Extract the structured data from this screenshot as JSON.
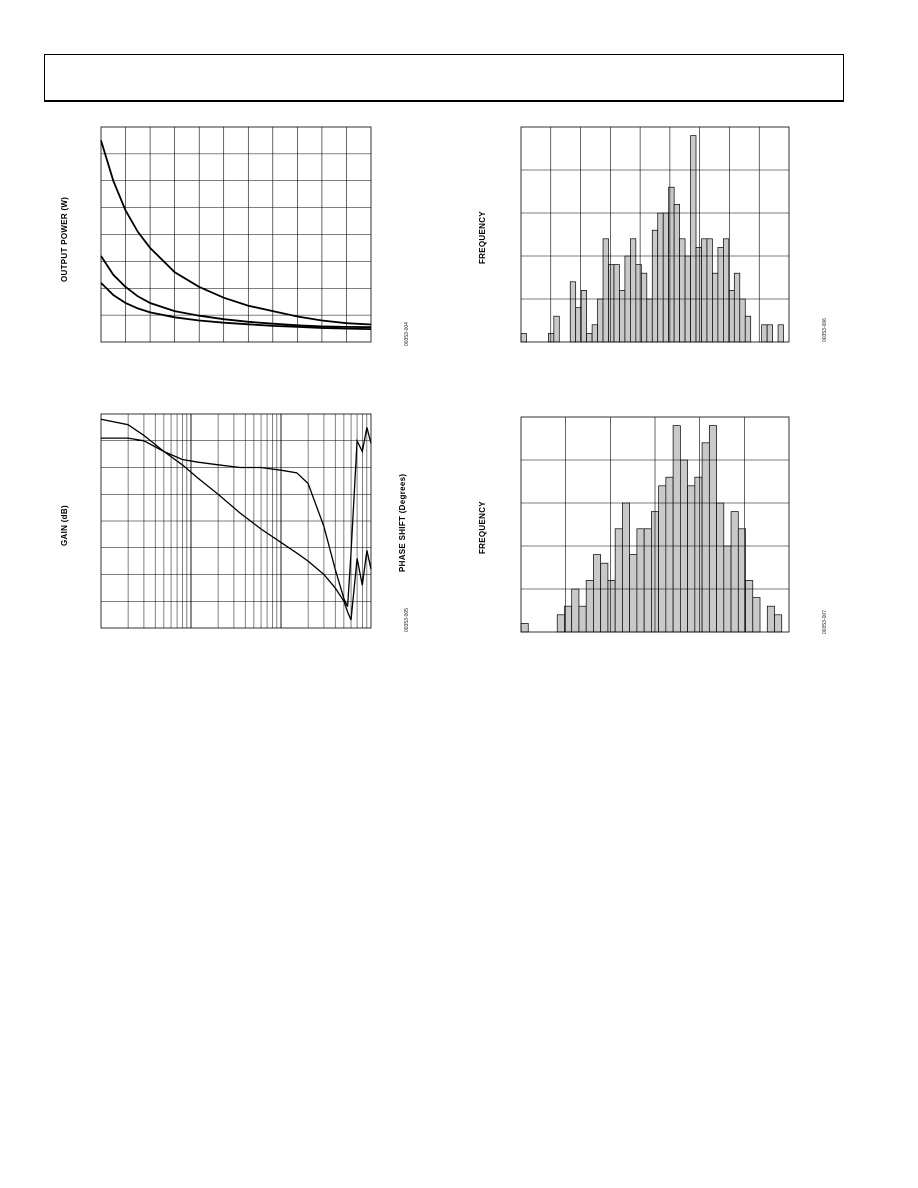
{
  "page": {
    "header": ""
  },
  "figures": [
    {
      "id": "fig-output-power",
      "ylabel": "OUTPUT POWER (W)",
      "fig_id": "00353-004"
    },
    {
      "id": "fig-gain-phase",
      "ylabel": "GAIN (dB)",
      "y2label": "PHASE SHIFT (Degrees)",
      "fig_id": "00353-005"
    },
    {
      "id": "fig-hist-1",
      "ylabel": "FREQUENCY",
      "fig_id": "00353-006"
    },
    {
      "id": "fig-hist-2",
      "ylabel": "FREQUENCY",
      "fig_id": "00353-007"
    }
  ],
  "chart_data": [
    {
      "type": "line",
      "title": "",
      "xlabel": "",
      "ylabel": "OUTPUT POWER (W)",
      "grid": true,
      "x": [
        0,
        0.5,
        1,
        1.5,
        2,
        3,
        4,
        5,
        6,
        7,
        8,
        9,
        10,
        11
      ],
      "xlim": [
        0,
        11
      ],
      "ylim": [
        0,
        8
      ],
      "series": [
        {
          "values": [
            7.5,
            6.0,
            4.9,
            4.1,
            3.5,
            2.6,
            2.05,
            1.65,
            1.35,
            1.15,
            0.95,
            0.8,
            0.7,
            0.65
          ]
        },
        {
          "values": [
            3.2,
            2.5,
            2.05,
            1.7,
            1.45,
            1.15,
            0.98,
            0.85,
            0.75,
            0.68,
            0.62,
            0.58,
            0.56,
            0.55
          ]
        },
        {
          "values": [
            2.2,
            1.75,
            1.45,
            1.25,
            1.1,
            0.92,
            0.8,
            0.72,
            0.66,
            0.6,
            0.56,
            0.52,
            0.5,
            0.48
          ]
        }
      ]
    },
    {
      "type": "line",
      "title": "",
      "xlabel": "",
      "ylabel": "GAIN (dB)",
      "y2label": "PHASE SHIFT (Degrees)",
      "grid": true,
      "xscale": "log",
      "xlim": [
        1,
        1000
      ],
      "ylim": [
        0,
        8
      ],
      "series": [
        {
          "x": [
            1,
            2,
            3,
            5,
            8,
            12,
            20,
            35,
            60,
            100,
            150,
            200,
            300,
            400,
            500,
            550,
            600,
            700,
            800,
            900,
            1000
          ],
          "values": [
            7.8,
            7.6,
            7.2,
            6.6,
            6.1,
            5.6,
            5.0,
            4.3,
            3.7,
            3.2,
            2.8,
            2.5,
            2.0,
            1.5,
            1.0,
            0.6,
            0.3,
            2.6,
            1.6,
            2.9,
            2.2
          ]
        },
        {
          "x": [
            1,
            2,
            3,
            5,
            8,
            12,
            20,
            35,
            60,
            100,
            150,
            200,
            300,
            400,
            500,
            550,
            600,
            700,
            800,
            900,
            1000
          ],
          "values": [
            7.1,
            7.1,
            7.0,
            6.6,
            6.3,
            6.2,
            6.1,
            6.0,
            6.0,
            5.9,
            5.8,
            5.4,
            3.8,
            2.2,
            1.1,
            0.8,
            2.8,
            7.0,
            6.6,
            7.5,
            6.9
          ]
        }
      ]
    },
    {
      "type": "bar",
      "title": "",
      "xlabel": "",
      "ylabel": "FREQUENCY",
      "grid": true,
      "ylim": [
        0,
        25
      ],
      "values": [
        1,
        0,
        0,
        0,
        0,
        1,
        3,
        0,
        0,
        7,
        4,
        6,
        1,
        2,
        5,
        12,
        9,
        9,
        6,
        10,
        12,
        9,
        8,
        5,
        13,
        15,
        15,
        18,
        16,
        12,
        10,
        24,
        11,
        12,
        12,
        8,
        11,
        12,
        6,
        8,
        5,
        3,
        0,
        0,
        2,
        2,
        0,
        2,
        0
      ]
    },
    {
      "type": "bar",
      "title": "",
      "xlabel": "",
      "ylabel": "FREQUENCY",
      "grid": true,
      "ylim": [
        0,
        25
      ],
      "values": [
        1,
        0,
        0,
        0,
        0,
        2,
        3,
        5,
        3,
        6,
        9,
        8,
        6,
        12,
        15,
        9,
        12,
        12,
        14,
        17,
        18,
        24,
        20,
        17,
        18,
        22,
        24,
        15,
        10,
        14,
        12,
        6,
        4,
        0,
        3,
        2,
        0
      ]
    }
  ]
}
